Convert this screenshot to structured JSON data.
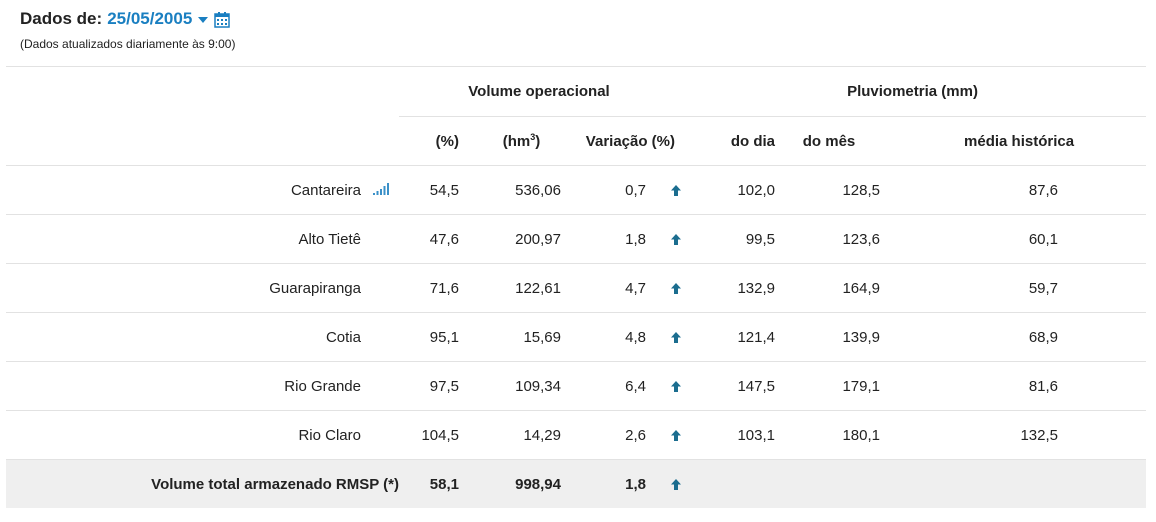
{
  "header": {
    "date_prefix": "Dados de:",
    "date_value": "25/05/2005",
    "note": "(Dados atualizados diariamente às 9:00)"
  },
  "table": {
    "group_volume": "Volume operacional",
    "group_pluv": "Pluviometria (mm)",
    "col_pct": "(%)",
    "col_hm": "(hm",
    "col_hm_sup": "3",
    "col_hm_close": ")",
    "col_var": "Variação (%)",
    "col_dia": "do dia",
    "col_mes": "do mês",
    "col_media": "média histórica",
    "rows": [
      {
        "name": "Cantareira",
        "pct": "54,5",
        "hm3": "536,06",
        "var": "0,7",
        "dia": "102,0",
        "mes": "128,5",
        "media": "87,6"
      },
      {
        "name": "Alto Tietê",
        "pct": "47,6",
        "hm3": "200,97",
        "var": "1,8",
        "dia": "99,5",
        "mes": "123,6",
        "media": "60,1"
      },
      {
        "name": "Guarapiranga",
        "pct": "71,6",
        "hm3": "122,61",
        "var": "4,7",
        "dia": "132,9",
        "mes": "164,9",
        "media": "59,7"
      },
      {
        "name": "Cotia",
        "pct": "95,1",
        "hm3": "15,69",
        "var": "4,8",
        "dia": "121,4",
        "mes": "139,9",
        "media": "68,9"
      },
      {
        "name": "Rio Grande",
        "pct": "97,5",
        "hm3": "109,34",
        "var": "6,4",
        "dia": "147,5",
        "mes": "179,1",
        "media": "81,6"
      },
      {
        "name": "Rio Claro",
        "pct": "104,5",
        "hm3": "14,29",
        "var": "2,6",
        "dia": "103,1",
        "mes": "180,1",
        "media": "132,5"
      }
    ],
    "total": {
      "name": "Volume total armazenado RMSP (*)",
      "pct": "58,1",
      "hm3": "998,94",
      "var": "1,8"
    }
  },
  "colors": {
    "accent": "#1a7fc1",
    "arrow": "#1b6d8f",
    "total_bg": "#efefef"
  },
  "icons": {
    "calendar": "calendar-icon",
    "chart": "bar-chart-icon",
    "arrow": "arrow-up-icon",
    "caret": "caret-down-icon"
  }
}
